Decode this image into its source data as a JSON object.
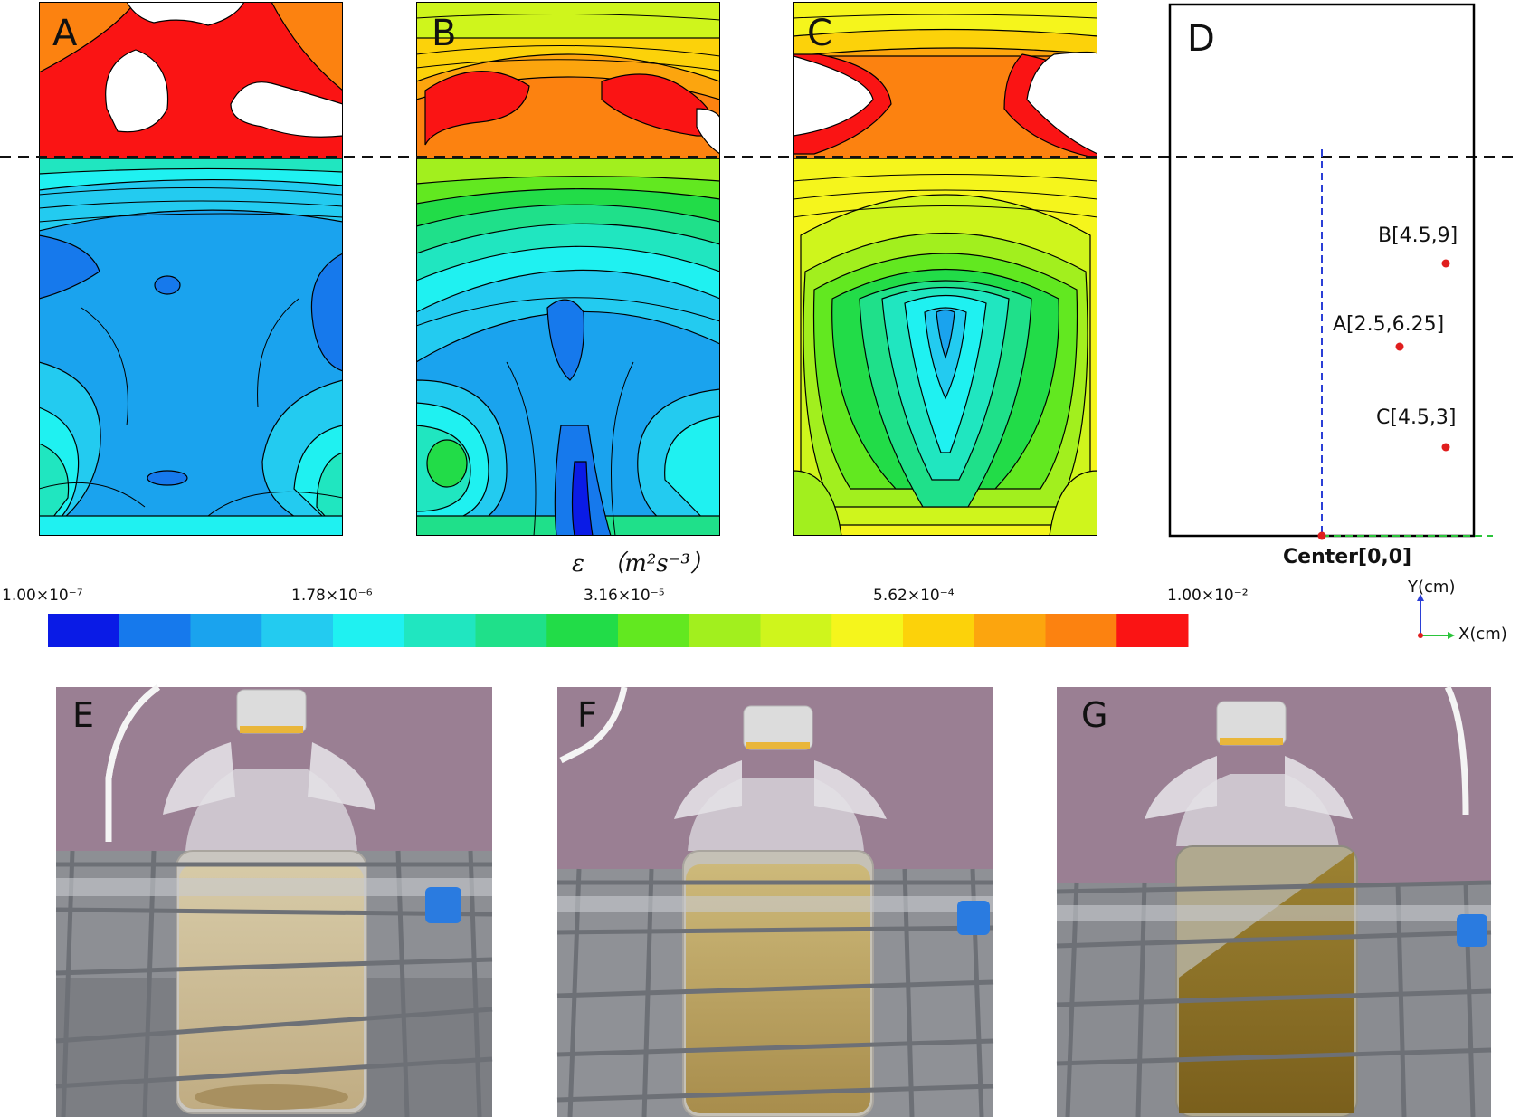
{
  "panels": {
    "a": {
      "letter": "A"
    },
    "b": {
      "letter": "B"
    },
    "c": {
      "letter": "C"
    },
    "d": {
      "letter": "D"
    }
  },
  "colorbar": {
    "title_symbol": "ε",
    "title_unit": "（m²s⁻³）",
    "tick_labels": [
      "1.00×10⁻⁷",
      "1.78×10⁻⁶",
      "3.16×10⁻⁵",
      "5.62×10⁻⁴",
      "1.00×10⁻²"
    ],
    "colors": [
      "#0a1be6",
      "#1679ec",
      "#1aa3ee",
      "#23cbf0",
      "#1ff1f1",
      "#20e6c0",
      "#1fe08a",
      "#22dc48",
      "#62e820",
      "#a2ef1e",
      "#cff51c",
      "#f5f51c",
      "#fcd20a",
      "#fca50e",
      "#fc8210",
      "#fa1414"
    ]
  },
  "points": {
    "b": "B[4.5,9]",
    "a": "A[2.5,6.25]",
    "c": "C[4.5,3]",
    "center": "Center[0,0]",
    "point_color": "#e01e1e"
  },
  "axes": {
    "y_label": "Y(cm)",
    "x_label": "X(cm)"
  },
  "photos": {
    "e": {
      "letter": "E"
    },
    "f": {
      "letter": "F"
    },
    "g": {
      "letter": "G"
    }
  }
}
